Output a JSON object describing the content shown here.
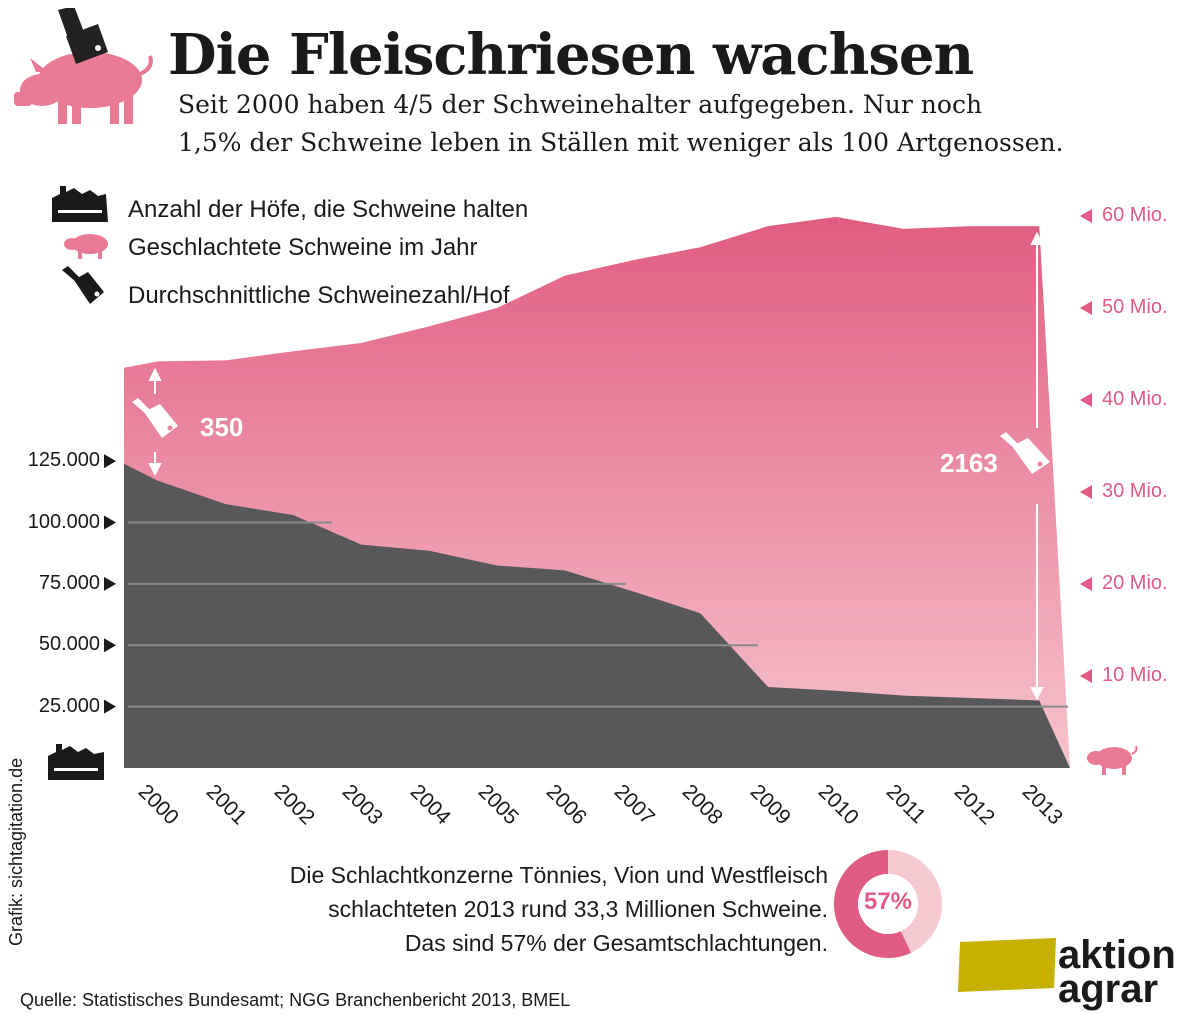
{
  "title": "Die Fleischriesen wachsen",
  "subtitle_line1": "Seit 2000 haben 4/5 der Schweinehalter aufgegeben. Nur noch",
  "subtitle_line2": "1,5% der Schweine leben in Ställen mit weniger als 100 Artgenossen.",
  "legend": [
    {
      "icon": "barn-icon",
      "label": "Anzahl der Höfe, die Schweine halten"
    },
    {
      "icon": "pig-icon",
      "label": "Geschlachtete Schweine im Jahr"
    },
    {
      "icon": "cleaver-icon",
      "label": "Durchschnittliche Schweinezahl/Hof"
    }
  ],
  "colors": {
    "pink": "#e05c82",
    "pink_light": "#f6c3cd",
    "dark": "#58585a",
    "olive": "#c7b000"
  },
  "chart_data": {
    "type": "area",
    "title": "Die Fleischriesen wachsen",
    "categories": [
      "2000",
      "2001",
      "2002",
      "2003",
      "2004",
      "2005",
      "2006",
      "2007",
      "2008",
      "2009",
      "2010",
      "2011",
      "2012",
      "2013"
    ],
    "series": [
      {
        "name": "Geschlachtete Schweine im Jahr",
        "axis": "right",
        "unit": "Mio.",
        "x": [
          2000,
          2000.5,
          2001.5,
          2002.5,
          2003.5,
          2004.5,
          2005.5,
          2006.5,
          2007.5,
          2008.5,
          2009.5,
          2010.5,
          2011.5,
          2012.5,
          2013.5
        ],
        "values": [
          43.5,
          44.2,
          44.3,
          45.3,
          46.2,
          48.0,
          50.0,
          53.5,
          55.2,
          56.6,
          58.9,
          59.9,
          58.6,
          58.9,
          58.9
        ]
      },
      {
        "name": "Anzahl der Höfe, die Schweine halten",
        "axis": "left",
        "unit": "",
        "x": [
          2000,
          2000.5,
          2001.5,
          2002.5,
          2003.5,
          2004.5,
          2005.5,
          2006.5,
          2007.5,
          2008.5,
          2009.5,
          2010.5,
          2011.5,
          2012.5,
          2013.5
        ],
        "values": [
          123900,
          117000,
          107500,
          103000,
          91000,
          88500,
          82500,
          80500,
          72000,
          63000,
          33000,
          31500,
          29500,
          28500,
          27500
        ]
      }
    ],
    "left_axis": {
      "range": [
        0,
        137000
      ],
      "ticks": [
        25000,
        50000,
        75000,
        100000,
        125000
      ],
      "tick_labels": [
        "25.000",
        "50.000",
        "75.000",
        "100.000",
        "125.000"
      ]
    },
    "right_axis": {
      "range": [
        0,
        60
      ],
      "ticks": [
        10,
        20,
        30,
        40,
        50,
        60
      ],
      "tick_labels": [
        "10 Mio.",
        "20 Mio.",
        "30 Mio.",
        "40 Mio.",
        "50 Mio.",
        "60 Mio."
      ]
    },
    "annotations": [
      {
        "year": 2000,
        "label": "350",
        "meaning": "Durchschnittliche Schweinezahl/Hof"
      },
      {
        "year": 2013,
        "label": "2163",
        "meaning": "Durchschnittliche Schweinezahl/Hof"
      }
    ],
    "donut": {
      "label": "57%",
      "value": 57
    }
  },
  "note_lines": [
    "Die Schlachtkonzerne Tönnies, Vion und Westfleisch",
    "schlachteten 2013 rund 33,3 Millionen Schweine.",
    "Das sind 57% der Gesamtschlachtungen."
  ],
  "source": "Quelle: Statistisches Bundesamt; NGG Branchenbericht 2013, BMEL",
  "credit": "Grafik: sichtagitation.de",
  "brand": {
    "line1": "aktion",
    "line2": "agrar"
  }
}
